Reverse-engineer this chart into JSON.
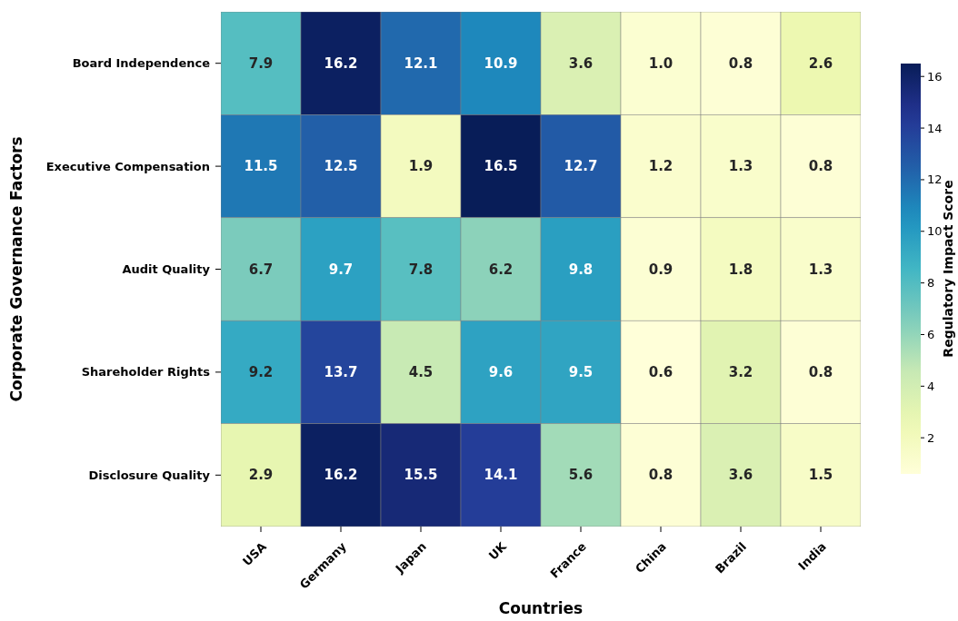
{
  "chart_data": {
    "type": "heatmap",
    "xlabel": "Countries",
    "ylabel": "Corporate Governance Factors",
    "clabel": "Regulatory Impact Score",
    "categories": [
      "USA",
      "Germany",
      "Japan",
      "UK",
      "France",
      "China",
      "Brazil",
      "India"
    ],
    "y_categories": [
      "Board Independence",
      "Executive Compensation",
      "Audit Quality",
      "Shareholder Rights",
      "Disclosure Quality"
    ],
    "cells": [
      [
        7.9,
        16.2,
        12.1,
        10.9,
        3.6,
        1.0,
        0.8,
        2.6
      ],
      [
        11.5,
        12.5,
        1.9,
        16.5,
        12.7,
        1.2,
        1.3,
        0.8
      ],
      [
        6.7,
        9.7,
        7.8,
        6.2,
        9.8,
        0.9,
        1.8,
        1.3
      ],
      [
        9.2,
        13.7,
        4.5,
        9.6,
        9.5,
        0.6,
        3.2,
        0.8
      ],
      [
        2.9,
        16.2,
        15.5,
        14.1,
        5.6,
        0.8,
        3.6,
        1.5
      ]
    ],
    "cell_labels": [
      [
        "7.9",
        "16.2",
        "12.1",
        "10.9",
        "3.6",
        "1.0",
        "0.8",
        "2.6"
      ],
      [
        "11.5",
        "12.5",
        "1.9",
        "16.5",
        "12.7",
        "1.2",
        "1.3",
        "0.8"
      ],
      [
        "6.7",
        "9.7",
        "7.8",
        "6.2",
        "9.8",
        "0.9",
        "1.8",
        "1.3"
      ],
      [
        "9.2",
        "13.7",
        "4.5",
        "9.6",
        "9.5",
        "0.6",
        "3.2",
        "0.8"
      ],
      [
        "2.9",
        "16.2",
        "15.5",
        "14.1",
        "5.6",
        "0.8",
        "3.6",
        "1.5"
      ]
    ],
    "clim": [
      0.6,
      16.5
    ],
    "cticks": [
      2,
      4,
      6,
      8,
      10,
      12,
      14,
      16
    ]
  }
}
